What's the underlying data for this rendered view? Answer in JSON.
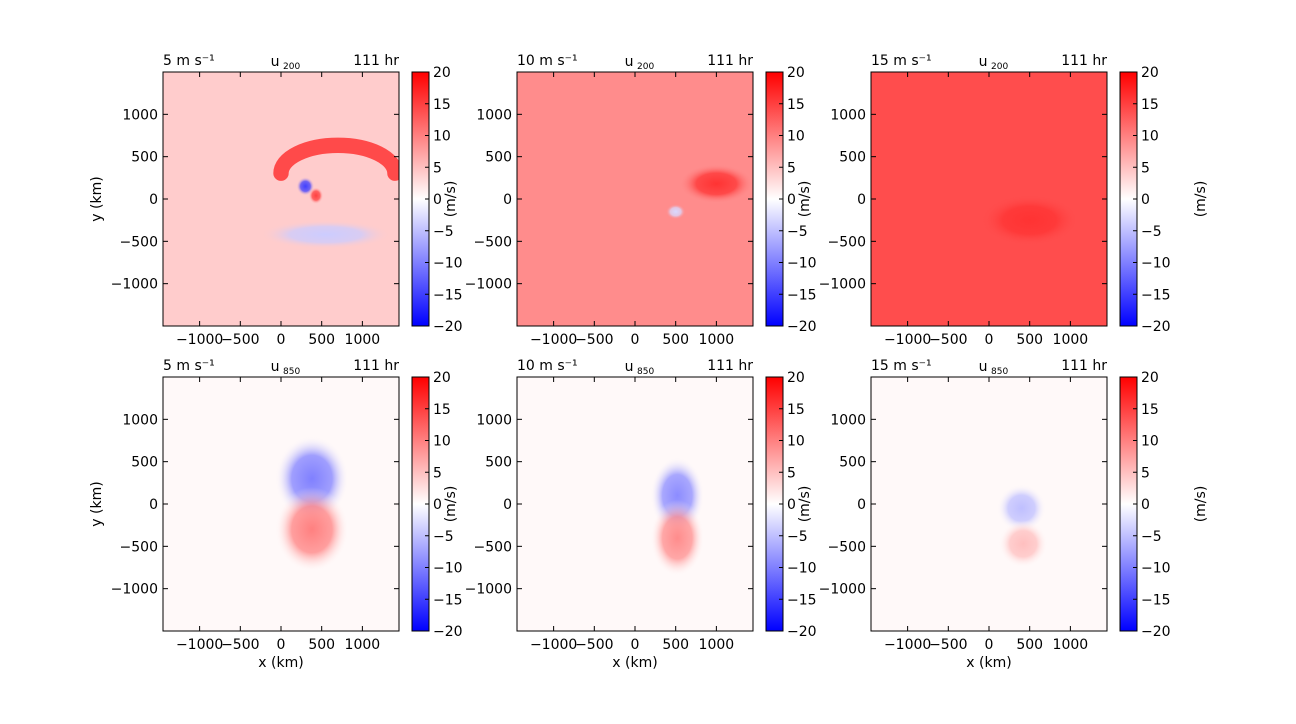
{
  "chart_data": [
    {
      "type": "heatmap",
      "title_left": "5 m s⁻¹",
      "title_center": "u200",
      "title_center_base": "u",
      "title_center_sub": "200",
      "title_right": "111 hr",
      "xlabel": "",
      "ylabel": "y (km)",
      "xlim": [
        -1450,
        1450
      ],
      "ylim": [
        -1500,
        1500
      ],
      "xticks": [
        -1000,
        -500,
        0,
        500,
        1000
      ],
      "yticks": [
        -1000,
        -500,
        0,
        500,
        1000
      ],
      "background_value": 4,
      "features": [
        {
          "kind": "arc",
          "cx": 700,
          "cy": 420,
          "rx": 700,
          "ry": 330,
          "value": 16
        },
        {
          "kind": "blob",
          "cx": 300,
          "cy": 150,
          "rx": 110,
          "ry": 110,
          "value": -15
        },
        {
          "kind": "blob",
          "cx": 430,
          "cy": 40,
          "rx": 90,
          "ry": 100,
          "value": 15
        },
        {
          "kind": "band",
          "cx": 550,
          "cy": -420,
          "rx": 800,
          "ry": 170,
          "value": -4
        }
      ],
      "colorbar": {
        "label": "",
        "min": -20,
        "max": 20,
        "ticks": [
          20,
          15,
          10,
          5,
          0,
          -5,
          -10,
          -15,
          -20
        ],
        "colormap": "bwr"
      }
    },
    {
      "type": "heatmap",
      "title_left": "10 m s⁻¹",
      "title_center": "u200",
      "title_center_base": "u",
      "title_center_sub": "200",
      "title_right": "111 hr",
      "xlabel": "",
      "ylabel": "(m/s)",
      "xlim": [
        -1450,
        1450
      ],
      "ylim": [
        -1500,
        1500
      ],
      "xticks": [
        -1000,
        -500,
        0,
        500,
        1000
      ],
      "yticks": [
        -1000,
        -500,
        0,
        500,
        1000
      ],
      "background_value": 9,
      "features": [
        {
          "kind": "blob",
          "cx": 1000,
          "cy": 180,
          "rx": 450,
          "ry": 230,
          "value": 16
        },
        {
          "kind": "blob",
          "cx": 500,
          "cy": -150,
          "rx": 120,
          "ry": 90,
          "value": -3
        }
      ],
      "colorbar": {
        "label": "",
        "min": -20,
        "max": 20,
        "ticks": [
          20,
          15,
          10,
          5,
          0,
          -5,
          -10,
          -15,
          -20
        ],
        "colormap": "bwr"
      }
    },
    {
      "type": "heatmap",
      "title_left": "15 m s⁻¹",
      "title_center": "u200",
      "title_center_base": "u",
      "title_center_sub": "200",
      "title_right": "111 hr",
      "xlabel": "",
      "ylabel": "(m/s)",
      "xlim": [
        -1450,
        1450
      ],
      "ylim": [
        -1500,
        1500
      ],
      "xticks": [
        -1000,
        -500,
        0,
        500,
        1000
      ],
      "yticks": [
        -1000,
        -500,
        0,
        500,
        1000
      ],
      "background_value": 14,
      "features": [
        {
          "kind": "blob",
          "cx": 500,
          "cy": -250,
          "rx": 600,
          "ry": 300,
          "value": 16
        }
      ],
      "colorbar": {
        "label": "(m/s)",
        "min": -20,
        "max": 20,
        "ticks": [
          20,
          15,
          10,
          5,
          0,
          -5,
          -10,
          -15,
          -20
        ],
        "colormap": "bwr"
      }
    },
    {
      "type": "heatmap",
      "title_left": "5 m s⁻¹",
      "title_center": "u850",
      "title_center_base": "u",
      "title_center_sub": "850",
      "title_right": "111 hr",
      "xlabel": "x (km)",
      "ylabel": "y (km)",
      "xlim": [
        -1450,
        1450
      ],
      "ylim": [
        -1500,
        1500
      ],
      "xticks": [
        -1000,
        -500,
        0,
        500,
        1000
      ],
      "yticks": [
        -1000,
        -500,
        0,
        500,
        1000
      ],
      "background_value": 0.5,
      "features": [
        {
          "kind": "blob",
          "cx": 380,
          "cy": 300,
          "rx": 450,
          "ry": 500,
          "value": -10
        },
        {
          "kind": "blob",
          "cx": 380,
          "cy": -300,
          "rx": 450,
          "ry": 500,
          "value": 10
        }
      ],
      "colorbar": {
        "label": "",
        "min": -20,
        "max": 20,
        "ticks": [
          20,
          15,
          10,
          5,
          0,
          -5,
          -10,
          -15,
          -20
        ],
        "colormap": "bwr"
      }
    },
    {
      "type": "heatmap",
      "title_left": "10 m s⁻¹",
      "title_center": "u850",
      "title_center_base": "u",
      "title_center_sub": "850",
      "title_right": "111 hr",
      "xlabel": "x (km)",
      "ylabel": "(m/s)",
      "xlim": [
        -1450,
        1450
      ],
      "ylim": [
        -1500,
        1500
      ],
      "xticks": [
        -1000,
        -500,
        0,
        500,
        1000
      ],
      "yticks": [
        -1000,
        -500,
        0,
        500,
        1000
      ],
      "background_value": 0.5,
      "features": [
        {
          "kind": "blob",
          "cx": 520,
          "cy": 100,
          "rx": 330,
          "ry": 450,
          "value": -9
        },
        {
          "kind": "blob",
          "cx": 520,
          "cy": -400,
          "rx": 330,
          "ry": 450,
          "value": 9
        }
      ],
      "colorbar": {
        "label": "",
        "min": -20,
        "max": 20,
        "ticks": [
          20,
          15,
          10,
          5,
          0,
          -5,
          -10,
          -15,
          -20
        ],
        "colormap": "bwr"
      }
    },
    {
      "type": "heatmap",
      "title_left": "15 m s⁻¹",
      "title_center": "u850",
      "title_center_base": "u",
      "title_center_sub": "850",
      "title_right": "111 hr",
      "xlabel": "x (km)",
      "ylabel": "(m/s)",
      "xlim": [
        -1450,
        1450
      ],
      "ylim": [
        -1500,
        1500
      ],
      "xticks": [
        -1000,
        -500,
        0,
        500,
        1000
      ],
      "yticks": [
        -1000,
        -500,
        0,
        500,
        1000
      ],
      "background_value": 0.5,
      "features": [
        {
          "kind": "blob",
          "cx": 400,
          "cy": -50,
          "rx": 300,
          "ry": 280,
          "value": -5
        },
        {
          "kind": "blob",
          "cx": 420,
          "cy": -470,
          "rx": 300,
          "ry": 280,
          "value": 5
        }
      ],
      "colorbar": {
        "label": "(m/s)",
        "min": -20,
        "max": 20,
        "ticks": [
          20,
          15,
          10,
          5,
          0,
          -5,
          -10,
          -15,
          -20
        ],
        "colormap": "bwr"
      }
    }
  ]
}
